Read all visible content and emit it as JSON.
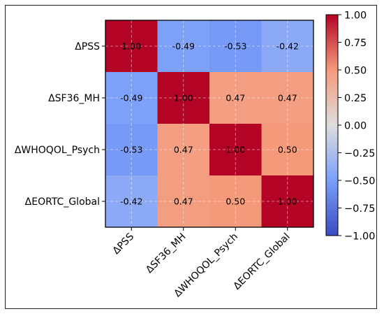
{
  "chart_data": {
    "type": "heatmap",
    "title": "",
    "xlabel": "",
    "ylabel": "",
    "categories": [
      "ΔPSS",
      "ΔSF36_MH",
      "ΔWHOQOL_Psych",
      "ΔEORTC_Global"
    ],
    "values": [
      [
        1.0,
        -0.49,
        -0.53,
        -0.42
      ],
      [
        -0.49,
        1.0,
        0.47,
        0.47
      ],
      [
        -0.53,
        0.47,
        1.0,
        0.5
      ],
      [
        -0.42,
        0.47,
        0.5,
        1.0
      ]
    ],
    "value_labels": [
      [
        "1.00",
        "-0.49",
        "-0.53",
        "-0.42"
      ],
      [
        "-0.49",
        "1.00",
        "0.47",
        "0.47"
      ],
      [
        "-0.53",
        "0.47",
        "1.00",
        "0.50"
      ],
      [
        "-0.42",
        "0.47",
        "0.50",
        "1.00"
      ]
    ],
    "colorbar": {
      "range": [
        -1.0,
        1.0
      ],
      "ticks": [
        "1.00",
        "0.75",
        "0.50",
        "0.25",
        "0.00",
        "−0.25",
        "−0.50",
        "−0.75",
        "−1.00"
      ],
      "colormap": "coolwarm",
      "colors": {
        "low": "#3b4cc0",
        "mid": "#dddddd",
        "high": "#b40426"
      }
    },
    "grid": true
  }
}
